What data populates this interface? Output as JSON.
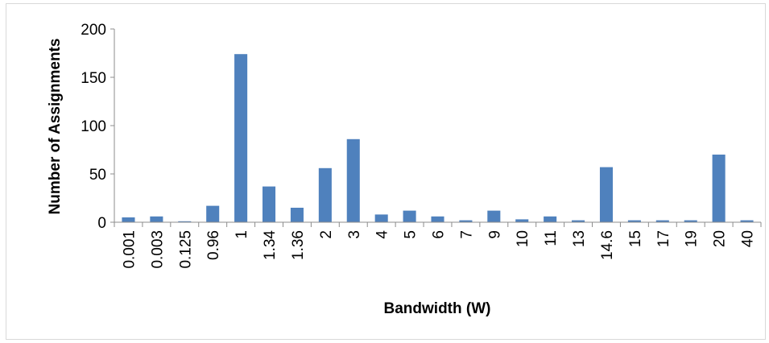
{
  "chart_data": {
    "type": "bar",
    "title": "",
    "xlabel": "Bandwidth (W)",
    "ylabel": "Number  of  Assignments",
    "ylim": [
      0,
      200
    ],
    "yticks": [
      "0",
      "50",
      "100",
      "150",
      "200"
    ],
    "grid": false,
    "legend": "none",
    "bar_color": "#4f81bd",
    "categories": [
      "0.001",
      "0.003",
      "0.125",
      "0.96",
      "1",
      "1.34",
      "1.36",
      "2",
      "3",
      "4",
      "5",
      "6",
      "7",
      "9",
      "10",
      "11",
      "13",
      "14.6",
      "15",
      "17",
      "19",
      "20",
      "40"
    ],
    "values": [
      5,
      6,
      1,
      17,
      174,
      37,
      15,
      56,
      86,
      8,
      12,
      6,
      2,
      12,
      3,
      6,
      2,
      57,
      2,
      2,
      2,
      70,
      2
    ]
  }
}
